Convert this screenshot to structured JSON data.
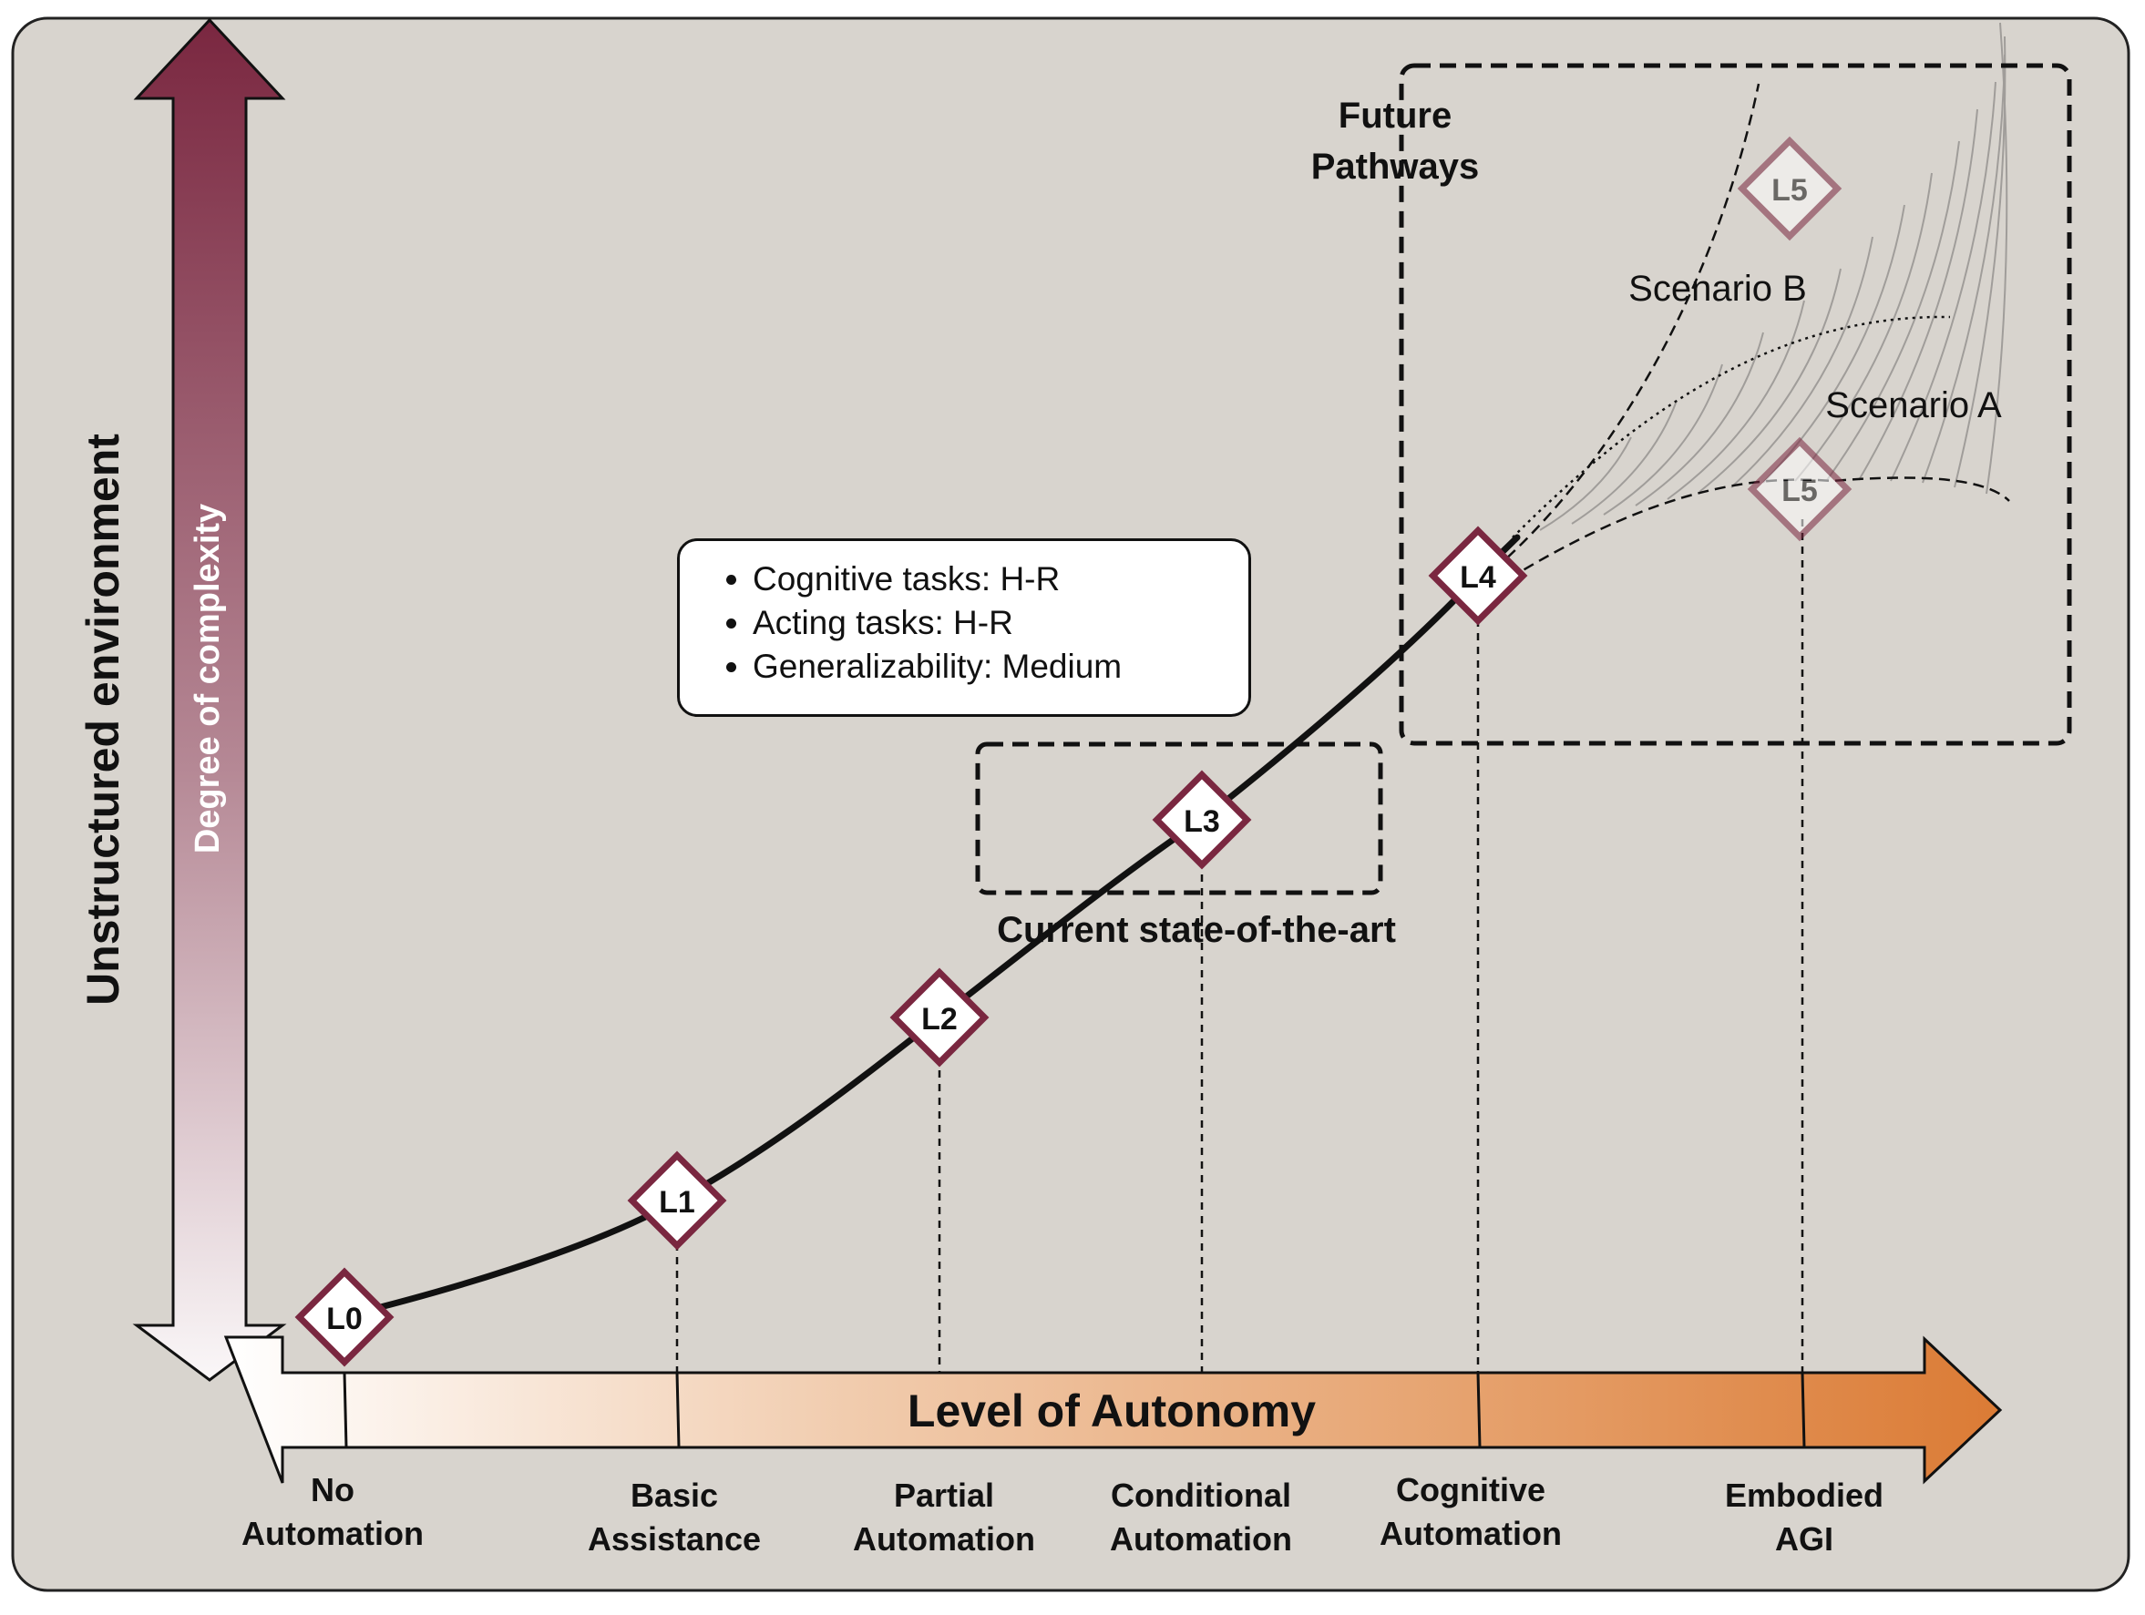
{
  "diagram": {
    "y_axis": {
      "outer_label": "Unstructured environment",
      "inner_label": "Degree of complexity"
    },
    "x_axis": {
      "label": "Level of Autonomy",
      "ticks": [
        {
          "line1": "No",
          "line2": "Automation"
        },
        {
          "line1": "Basic",
          "line2": "Assistance"
        },
        {
          "line1": "Partial",
          "line2": "Automation"
        },
        {
          "line1": "Conditional",
          "line2": "Automation"
        },
        {
          "line1": "Cognitive",
          "line2": "Automation"
        },
        {
          "line1": "Embodied",
          "line2": "AGI"
        }
      ]
    },
    "levels": [
      "L0",
      "L1",
      "L2",
      "L3",
      "L4"
    ],
    "future_levels": [
      "L5",
      "L5"
    ],
    "info_box": {
      "items": [
        "Cognitive tasks: H-R",
        "Acting tasks: H-R",
        "Generalizability: Medium"
      ]
    },
    "regions": {
      "current": "Current state-of-the-art",
      "future_line1": "Future",
      "future_line2": "Pathways"
    },
    "scenarios": {
      "a": "Scenario A",
      "b": "Scenario B"
    },
    "colors": {
      "background": "#d8d4ce",
      "accent": "#7a2740",
      "axis_gradient_start": "#ffffff",
      "axis_gradient_end": "#db7b35"
    }
  }
}
